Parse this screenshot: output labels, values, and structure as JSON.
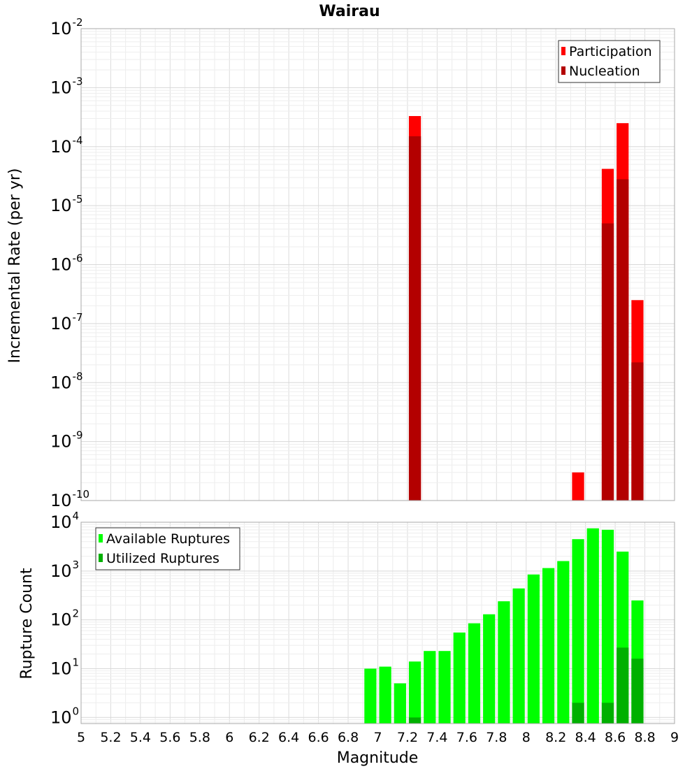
{
  "chart_data": [
    {
      "type": "bar",
      "title": "Wairau",
      "xlabel": "",
      "ylabel": "Incremental Rate (per yr)",
      "yscale": "log",
      "ylim": [
        1e-10,
        0.01
      ],
      "xlim": [
        5,
        9
      ],
      "grid": true,
      "legend_position": "top-right",
      "series": [
        {
          "name": "Participation",
          "color": "#ff0000",
          "x": [
            7.25,
            8.35,
            8.55,
            8.65,
            8.75
          ],
          "values": [
            0.00033,
            3e-10,
            4.2e-05,
            0.00025,
            2.5e-07
          ]
        },
        {
          "name": "Nucleation",
          "color": "#b30000",
          "x": [
            7.25,
            8.55,
            8.65,
            8.75
          ],
          "values": [
            0.00015,
            5e-06,
            2.8e-05,
            2.2e-08
          ]
        }
      ]
    },
    {
      "type": "bar",
      "title": "",
      "xlabel": "Magnitude",
      "ylabel": "Rupture Count",
      "yscale": "log",
      "ylim": [
        0.75,
        10000
      ],
      "xlim": [
        5,
        9
      ],
      "grid": true,
      "legend_position": "top-left",
      "x_ticks": [
        "5",
        "5.2",
        "5.4",
        "5.6",
        "5.8",
        "6",
        "6.2",
        "6.4",
        "6.6",
        "6.8",
        "7",
        "7.2",
        "7.4",
        "7.6",
        "7.8",
        "8",
        "8.2",
        "8.4",
        "8.6",
        "8.8",
        "9"
      ],
      "series": [
        {
          "name": "Available Ruptures",
          "color": "#00ff00",
          "x": [
            6.95,
            7.05,
            7.15,
            7.25,
            7.35,
            7.45,
            7.55,
            7.65,
            7.75,
            7.85,
            7.95,
            8.05,
            8.15,
            8.25,
            8.35,
            8.45,
            8.55,
            8.65,
            8.75
          ],
          "values": [
            10,
            11,
            5,
            14,
            23,
            23,
            55,
            85,
            130,
            240,
            440,
            850,
            1150,
            1600,
            4500,
            7500,
            7000,
            2500,
            250
          ]
        },
        {
          "name": "Utilized Ruptures",
          "color": "#00b000",
          "x": [
            7.25,
            8.35,
            8.55,
            8.65,
            8.75
          ],
          "values": [
            1,
            2,
            2,
            27,
            16
          ]
        }
      ]
    }
  ]
}
